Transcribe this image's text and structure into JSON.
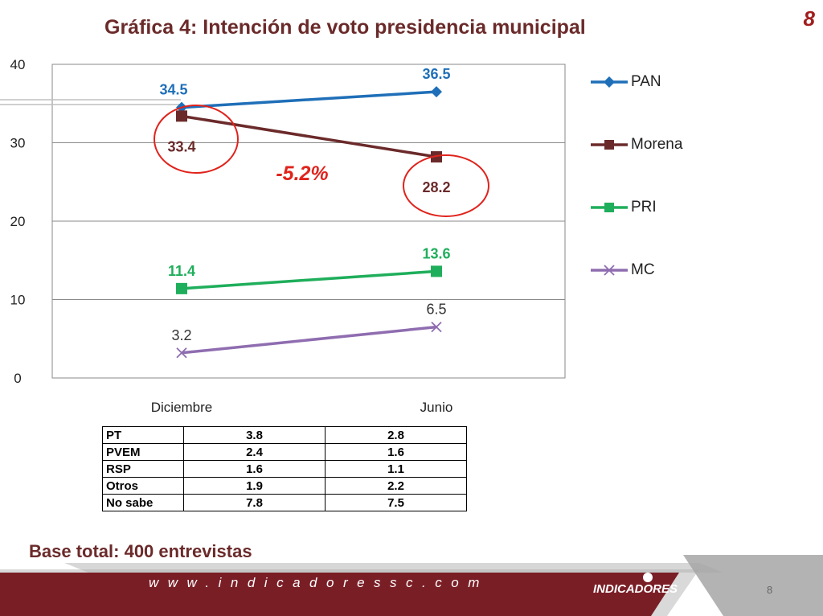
{
  "header": {
    "title": "Gráfica 4: Intención de voto presidencia municipal",
    "slide_number": "8"
  },
  "chart_data": {
    "type": "line",
    "categories": [
      "Diciembre",
      "Junio"
    ],
    "ylim": [
      0,
      40
    ],
    "yticks": [
      "0",
      "10",
      "20",
      "30",
      "40"
    ],
    "grid": true,
    "legend_position": "right",
    "series": [
      {
        "name": "PAN",
        "values": [
          34.5,
          36.5
        ],
        "labels": [
          "34.5",
          "36.5"
        ],
        "color": "#1f6fb8",
        "marker": "diamond",
        "label_bold": true
      },
      {
        "name": "Morena",
        "values": [
          33.4,
          28.2
        ],
        "labels": [
          "33.4",
          "28.2"
        ],
        "color": "#6b2a2a",
        "marker": "square",
        "label_bold": true
      },
      {
        "name": "PRI",
        "values": [
          11.4,
          13.6
        ],
        "labels": [
          "11.4",
          "13.6"
        ],
        "color": "#1fae5b",
        "marker": "square",
        "label_bold": true
      },
      {
        "name": "MC",
        "values": [
          3.2,
          6.5
        ],
        "labels": [
          "3.2",
          "6.5"
        ],
        "color": "#8f6db0",
        "marker": "x",
        "label_bold": false
      }
    ],
    "annotation": {
      "text": "-5.2%",
      "color": "#e0231c"
    }
  },
  "table": {
    "rows": [
      {
        "label": "PT",
        "dic": "3.8",
        "jun": "2.8"
      },
      {
        "label": "PVEM",
        "dic": "2.4",
        "jun": "1.6"
      },
      {
        "label": "RSP",
        "dic": "1.6",
        "jun": "1.1"
      },
      {
        "label": "Otros",
        "dic": "1.9",
        "jun": "2.2"
      },
      {
        "label": "No sabe",
        "dic": "7.8",
        "jun": "7.5"
      }
    ]
  },
  "footer": {
    "base": "Base total: 400 entrevistas",
    "url": "www.indicadoressc.com",
    "logo": "INDICADORES",
    "page": "8"
  },
  "colors": {
    "brand": "#6b2a2a",
    "footer_band": "#7a1e26",
    "footer_gray": "#9e9e9e"
  }
}
